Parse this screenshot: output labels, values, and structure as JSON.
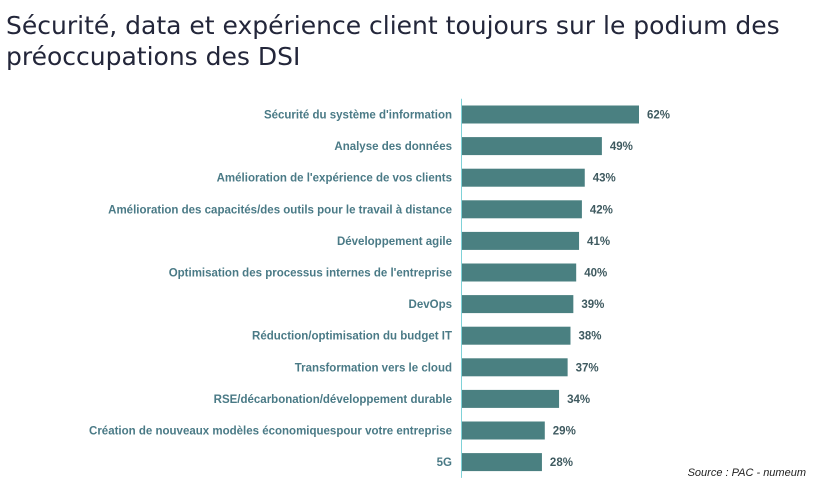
{
  "title": "Sécurité, data et expérience client toujours sur le podium des préoccupations des DSI",
  "source": "Source : PAC - numeum",
  "colors": {
    "bar": "#4a8081",
    "axis": "#7fd2d8",
    "label": "#4a7a86"
  },
  "chart_data": {
    "type": "bar",
    "orientation": "horizontal",
    "title": "",
    "xlabel": "",
    "ylabel": "",
    "value_suffix": "%",
    "xlim": [
      0,
      62
    ],
    "grid": false,
    "categories": [
      "Sécurité du système d'information",
      "Analyse des données",
      "Amélioration de l'expérience de vos clients",
      "Amélioration des capacités/des outils pour le travail à distance",
      "Développement agile",
      "Optimisation des processus internes de l'entreprise",
      "DevOps",
      "Réduction/optimisation du budget IT",
      "Transformation vers le cloud",
      "RSE/décarbonation/développement durable",
      "Création de nouveaux modèles économiquespour votre entreprise",
      "5G"
    ],
    "values": [
      62,
      49,
      43,
      42,
      41,
      40,
      39,
      38,
      37,
      34,
      29,
      28
    ],
    "value_labels": [
      "62%",
      "49%",
      "43%",
      "42%",
      "41%",
      "40%",
      "39%",
      "38%",
      "37%",
      "34%",
      "29%",
      "28%"
    ]
  }
}
